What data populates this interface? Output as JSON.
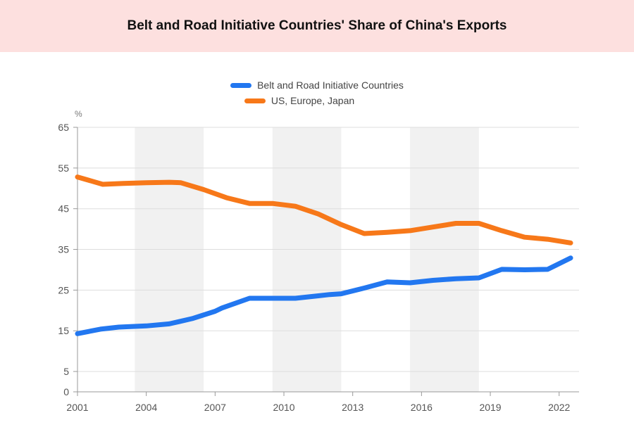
{
  "title": "Belt and Road Initiative Countries' Share of China's Exports",
  "chart_data": {
    "type": "line",
    "title": "Belt and Road Initiative Countries' Share of China's Exports",
    "ylabel": "%",
    "xlabel": "",
    "ylim": [
      0,
      65
    ],
    "xlim": [
      2001,
      2022.5
    ],
    "yticks": [
      0,
      5,
      15,
      25,
      35,
      45,
      55,
      65
    ],
    "xticks": [
      2001,
      2004,
      2007,
      2010,
      2013,
      2016,
      2019,
      2022
    ],
    "shaded_bands": [
      [
        2003.5,
        2006.5
      ],
      [
        2009.5,
        2012.5
      ],
      [
        2015.5,
        2018.5
      ]
    ],
    "legend_position": "top-center",
    "series": [
      {
        "name": "Belt and Road Initiative Countries",
        "color": "#2277f0",
        "points": [
          [
            2001,
            14.3
          ],
          [
            2002,
            15.4
          ],
          [
            2002.8,
            15.9
          ],
          [
            2004,
            16.2
          ],
          [
            2005,
            16.7
          ],
          [
            2006,
            18.0
          ],
          [
            2007,
            19.8
          ],
          [
            2007.3,
            20.6
          ],
          [
            2008.5,
            23.0
          ],
          [
            2009.5,
            23.0
          ],
          [
            2010,
            23.0
          ],
          [
            2010.5,
            23.0
          ],
          [
            2011.5,
            23.6
          ],
          [
            2012,
            23.9
          ],
          [
            2012.5,
            24.1
          ],
          [
            2013.5,
            25.5
          ],
          [
            2014.5,
            27.0
          ],
          [
            2015.5,
            26.8
          ],
          [
            2016.5,
            27.4
          ],
          [
            2017.5,
            27.8
          ],
          [
            2018.5,
            28.0
          ],
          [
            2019.5,
            30.1
          ],
          [
            2020.5,
            30.0
          ],
          [
            2021.5,
            30.1
          ],
          [
            2022.5,
            32.9
          ]
        ]
      },
      {
        "name": "US, Europe, Japan",
        "color": "#f77819",
        "points": [
          [
            2001,
            52.8
          ],
          [
            2002.1,
            51.0
          ],
          [
            2003,
            51.2
          ],
          [
            2004,
            51.4
          ],
          [
            2005,
            51.5
          ],
          [
            2005.5,
            51.4
          ],
          [
            2006.5,
            49.7
          ],
          [
            2007.5,
            47.7
          ],
          [
            2008.5,
            46.3
          ],
          [
            2009.5,
            46.3
          ],
          [
            2010.5,
            45.6
          ],
          [
            2011.5,
            43.7
          ],
          [
            2012.5,
            41.1
          ],
          [
            2013.5,
            38.9
          ],
          [
            2014.5,
            39.2
          ],
          [
            2015.5,
            39.6
          ],
          [
            2016.5,
            40.5
          ],
          [
            2017.5,
            41.4
          ],
          [
            2018.5,
            41.4
          ],
          [
            2019.5,
            39.6
          ],
          [
            2020.5,
            38.0
          ],
          [
            2021.5,
            37.5
          ],
          [
            2022.5,
            36.6
          ]
        ]
      }
    ]
  }
}
